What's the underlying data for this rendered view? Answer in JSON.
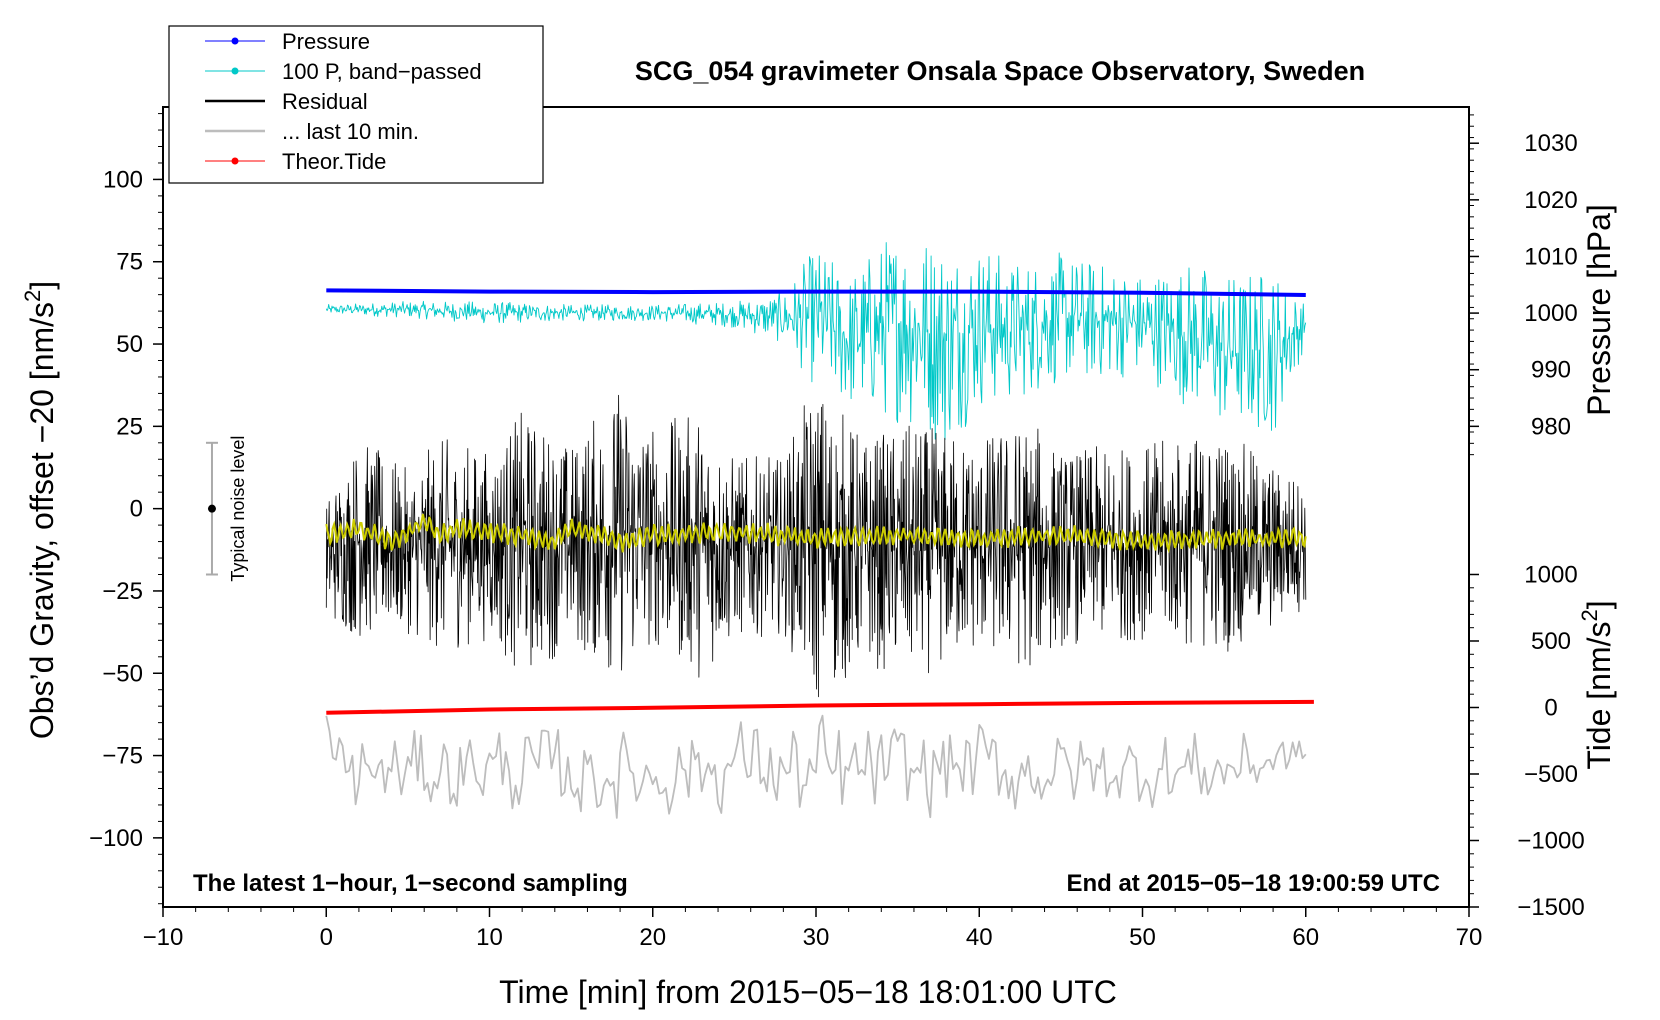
{
  "chart_data": {
    "type": "line",
    "title": "SCG_054 gravimeter Onsala Space Observatory, Sweden",
    "xlabel": "Time [min] from 2015−05−18 18:01:00 UTC",
    "ylabel_left": "Obs’d Gravity, offset −20 [nm/s",
    "ylabel_left_sup": "2",
    "ylabel_left_close": "]",
    "ylabel_right_pressure": "Pressure [hPa]",
    "ylabel_right_tide": "Tide [nm/s",
    "ylabel_right_tide_sup": "2",
    "ylabel_right_tide_close": "]",
    "xlim": [
      -10,
      70
    ],
    "ylim_left": [
      -121,
      122
    ],
    "x_ticks": [
      {
        "v": -10,
        "label": "−10"
      },
      {
        "v": 0,
        "label": "0"
      },
      {
        "v": 10,
        "label": "10"
      },
      {
        "v": 20,
        "label": "20"
      },
      {
        "v": 30,
        "label": "30"
      },
      {
        "v": 40,
        "label": "40"
      },
      {
        "v": 50,
        "label": "50"
      },
      {
        "v": 60,
        "label": "60"
      },
      {
        "v": 70,
        "label": "70"
      }
    ],
    "y_ticks_left": [
      {
        "v": 100,
        "label": "100"
      },
      {
        "v": 75,
        "label": "75"
      },
      {
        "v": 50,
        "label": "50"
      },
      {
        "v": 25,
        "label": "25"
      },
      {
        "v": 0,
        "label": "0"
      },
      {
        "v": -25,
        "label": "−25"
      },
      {
        "v": -50,
        "label": "−50"
      },
      {
        "v": -75,
        "label": "−75"
      },
      {
        "v": -100,
        "label": "−100"
      }
    ],
    "pressure_axis": {
      "map": [
        [
          980,
          25
        ],
        [
          1030,
          111
        ]
      ],
      "ticks": [
        {
          "v": 1030,
          "label": "1030"
        },
        {
          "v": 1020,
          "label": "1020"
        },
        {
          "v": 1010,
          "label": "1010"
        },
        {
          "v": 1000,
          "label": "1000"
        },
        {
          "v": 990,
          "label": "990"
        },
        {
          "v": 980,
          "label": "980"
        }
      ]
    },
    "tide_axis": {
      "map": [
        [
          -1500,
          -121
        ],
        [
          1000,
          -20
        ]
      ],
      "ticks": [
        {
          "v": 1000,
          "label": "1000"
        },
        {
          "v": 500,
          "label": "500"
        },
        {
          "v": 0,
          "label": "0"
        },
        {
          "v": -500,
          "label": "−500"
        },
        {
          "v": -1000,
          "label": "−1000"
        },
        {
          "v": -1500,
          "label": "−1500"
        }
      ]
    },
    "legend": {
      "position": "top-left",
      "entries": [
        {
          "label": "Pressure",
          "color": "#0000ff",
          "marker": true
        },
        {
          "label": "100 P, band−passed",
          "color": "#00c8c8",
          "marker": true
        },
        {
          "label": "Residual",
          "color": "#000000",
          "marker": false
        },
        {
          "label": "... last 10 min.",
          "color": "#bdbdbd",
          "marker": false
        },
        {
          "label": "Theor.Tide",
          "color": "#ff0000",
          "marker": true
        }
      ]
    },
    "noise_bar": {
      "label": "Typical noise level",
      "x": -7,
      "center": 0,
      "half_range": 20
    },
    "annotations": {
      "bottom_left": "The latest 1−hour, 1−second sampling",
      "bottom_right": "End at 2015−05−18 19:00:59 UTC"
    },
    "series": [
      {
        "name": "Pressure",
        "color": "#0000ff",
        "units": "hPa",
        "x_range": [
          0,
          60
        ],
        "points": [
          [
            0,
            1004.0
          ],
          [
            10,
            1003.8
          ],
          [
            20,
            1003.7
          ],
          [
            30,
            1003.8
          ],
          [
            40,
            1003.8
          ],
          [
            50,
            1003.6
          ],
          [
            60,
            1003.2
          ]
        ]
      },
      {
        "name": "100 P, band−passed",
        "color": "#00c8c8",
        "units": "nm/s2",
        "x_range": [
          0,
          60
        ],
        "envelope": [
          [
            0,
            62,
            59
          ],
          [
            5,
            63,
            58
          ],
          [
            10,
            63,
            56
          ],
          [
            15,
            62,
            57
          ],
          [
            20,
            62,
            57
          ],
          [
            25,
            63,
            55
          ],
          [
            28,
            66,
            50
          ],
          [
            30,
            80,
            36
          ],
          [
            32,
            72,
            30
          ],
          [
            35,
            87,
            26
          ],
          [
            38,
            84,
            18
          ],
          [
            40,
            82,
            30
          ],
          [
            42,
            76,
            32
          ],
          [
            45,
            78,
            38
          ],
          [
            50,
            72,
            40
          ],
          [
            53,
            76,
            30
          ],
          [
            55,
            72,
            24
          ],
          [
            58,
            74,
            22
          ],
          [
            60,
            62,
            50
          ]
        ]
      },
      {
        "name": "Residual",
        "color": "#000000",
        "units": "nm/s2",
        "x_range": [
          0,
          60
        ],
        "envelope": [
          [
            0,
            4,
            -34
          ],
          [
            2,
            22,
            -40
          ],
          [
            5,
            12,
            -38
          ],
          [
            7,
            22,
            -44
          ],
          [
            10,
            18,
            -40
          ],
          [
            12,
            30,
            -52
          ],
          [
            15,
            20,
            -42
          ],
          [
            18,
            38,
            -52
          ],
          [
            20,
            26,
            -42
          ],
          [
            23,
            30,
            -52
          ],
          [
            25,
            16,
            -40
          ],
          [
            28,
            16,
            -38
          ],
          [
            30,
            40,
            -60
          ],
          [
            33,
            22,
            -48
          ],
          [
            36,
            26,
            -52
          ],
          [
            40,
            22,
            -44
          ],
          [
            43,
            28,
            -50
          ],
          [
            45,
            18,
            -42
          ],
          [
            50,
            20,
            -40
          ],
          [
            55,
            24,
            -44
          ],
          [
            58,
            14,
            -38
          ],
          [
            60,
            10,
            -30
          ]
        ]
      },
      {
        "name": "Smoothed residual",
        "color": "#cccc00",
        "units": "nm/s2",
        "x_range": [
          0,
          60
        ],
        "points": [
          [
            0,
            -8
          ],
          [
            2,
            -6
          ],
          [
            4,
            -10
          ],
          [
            6,
            -4
          ],
          [
            7,
            -8
          ],
          [
            8,
            -6
          ],
          [
            12,
            -8
          ],
          [
            14,
            -10
          ],
          [
            15,
            -6
          ],
          [
            17,
            -8
          ],
          [
            18,
            -10
          ],
          [
            20,
            -8
          ],
          [
            25,
            -7
          ],
          [
            30,
            -9
          ],
          [
            35,
            -8
          ],
          [
            40,
            -9
          ],
          [
            45,
            -8
          ],
          [
            50,
            -10
          ],
          [
            55,
            -9
          ],
          [
            60,
            -9
          ]
        ]
      },
      {
        "name": "... last 10 min.",
        "color": "#bdbdbd",
        "units": "nm/s2",
        "x_range": [
          0,
          60
        ],
        "envelope": [
          [
            0,
            -60,
            -100
          ],
          [
            5,
            -62,
            -98
          ],
          [
            10,
            -58,
            -98
          ],
          [
            15,
            -62,
            -100
          ],
          [
            20,
            -62,
            -100
          ],
          [
            25,
            -58,
            -96
          ],
          [
            30,
            -55,
            -108
          ],
          [
            35,
            -60,
            -100
          ],
          [
            40,
            -58,
            -98
          ],
          [
            42,
            -57,
            -100
          ],
          [
            45,
            -62,
            -98
          ],
          [
            50,
            -62,
            -96
          ],
          [
            55,
            -60,
            -98
          ],
          [
            60,
            -68,
            -80
          ]
        ]
      },
      {
        "name": "Theor.Tide",
        "color": "#ff0000",
        "units": "nm/s2",
        "x_range": [
          0,
          60.5
        ],
        "points": [
          [
            0,
            -62
          ],
          [
            10,
            -61
          ],
          [
            20,
            -60.5
          ],
          [
            30,
            -59.8
          ],
          [
            40,
            -59.4
          ],
          [
            50,
            -59.0
          ],
          [
            60.5,
            -58.7
          ]
        ]
      }
    ]
  }
}
